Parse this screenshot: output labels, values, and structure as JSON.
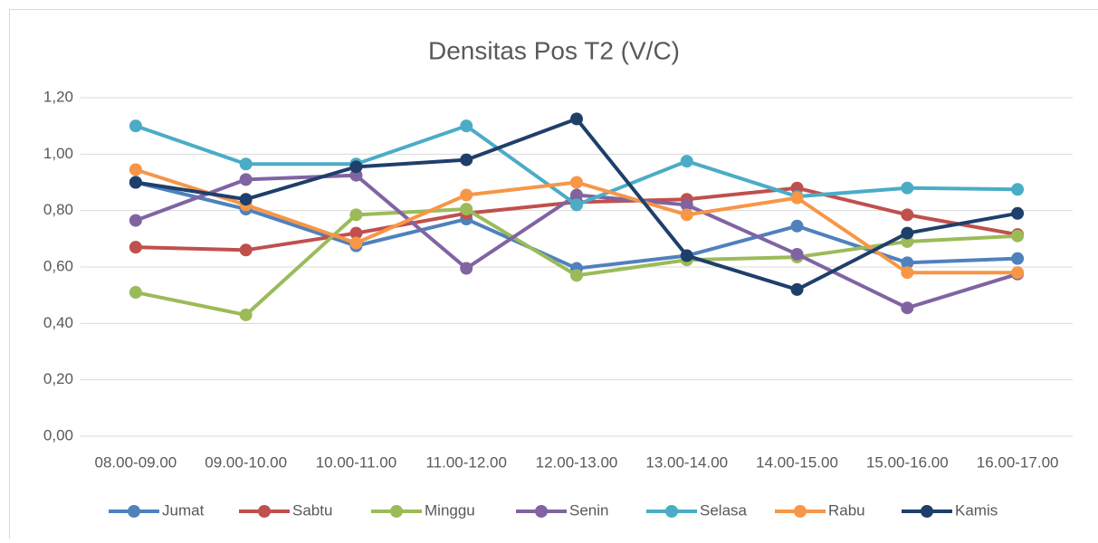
{
  "chart_data": {
    "type": "line",
    "title": "Densitas Pos T2 (V/C)",
    "categories": [
      "08.00-09.00",
      "09.00-10.00",
      "10.00-11.00",
      "11.00-12.00",
      "12.00-13.00",
      "13.00-14.00",
      "14.00-15.00",
      "15.00-16.00",
      "16.00-17.00"
    ],
    "series": [
      {
        "name": "Jumat",
        "color": "#4f81bd",
        "values": [
          0.9,
          0.805,
          0.675,
          0.77,
          0.595,
          0.64,
          0.745,
          0.615,
          0.63
        ]
      },
      {
        "name": "Sabtu",
        "color": "#c0504d",
        "values": [
          0.67,
          0.66,
          0.72,
          0.79,
          0.83,
          0.84,
          0.88,
          0.785,
          0.715
        ]
      },
      {
        "name": "Minggu",
        "color": "#9bbb59",
        "values": [
          0.51,
          0.43,
          0.785,
          0.805,
          0.57,
          0.625,
          0.635,
          0.69,
          0.71
        ]
      },
      {
        "name": "Senin",
        "color": "#8064a2",
        "values": [
          0.765,
          0.91,
          0.925,
          0.595,
          0.855,
          0.82,
          0.645,
          0.455,
          0.575
        ]
      },
      {
        "name": "Selasa",
        "color": "#4bacc6",
        "values": [
          1.1,
          0.965,
          0.965,
          1.1,
          0.82,
          0.975,
          0.85,
          0.88,
          0.875
        ]
      },
      {
        "name": "Rabu",
        "color": "#f79646",
        "values": [
          0.945,
          0.82,
          0.685,
          0.855,
          0.9,
          0.785,
          0.845,
          0.58,
          0.58
        ]
      },
      {
        "name": "Kamis",
        "color": "#1f3f6b",
        "values": [
          0.9,
          0.84,
          0.955,
          0.98,
          1.125,
          0.64,
          0.52,
          0.72,
          0.79
        ]
      }
    ],
    "ylim": [
      0,
      1.2
    ],
    "yticks": [
      {
        "value": 0,
        "label": "0,00"
      },
      {
        "value": 0.2,
        "label": "0,20"
      },
      {
        "value": 0.4,
        "label": "0,40"
      },
      {
        "value": 0.6,
        "label": "0,60"
      },
      {
        "value": 0.8,
        "label": "0,80"
      },
      {
        "value": 1.0,
        "label": "1,00"
      },
      {
        "value": 1.2,
        "label": "1,20"
      }
    ],
    "grid": true,
    "legend": "bottom"
  }
}
